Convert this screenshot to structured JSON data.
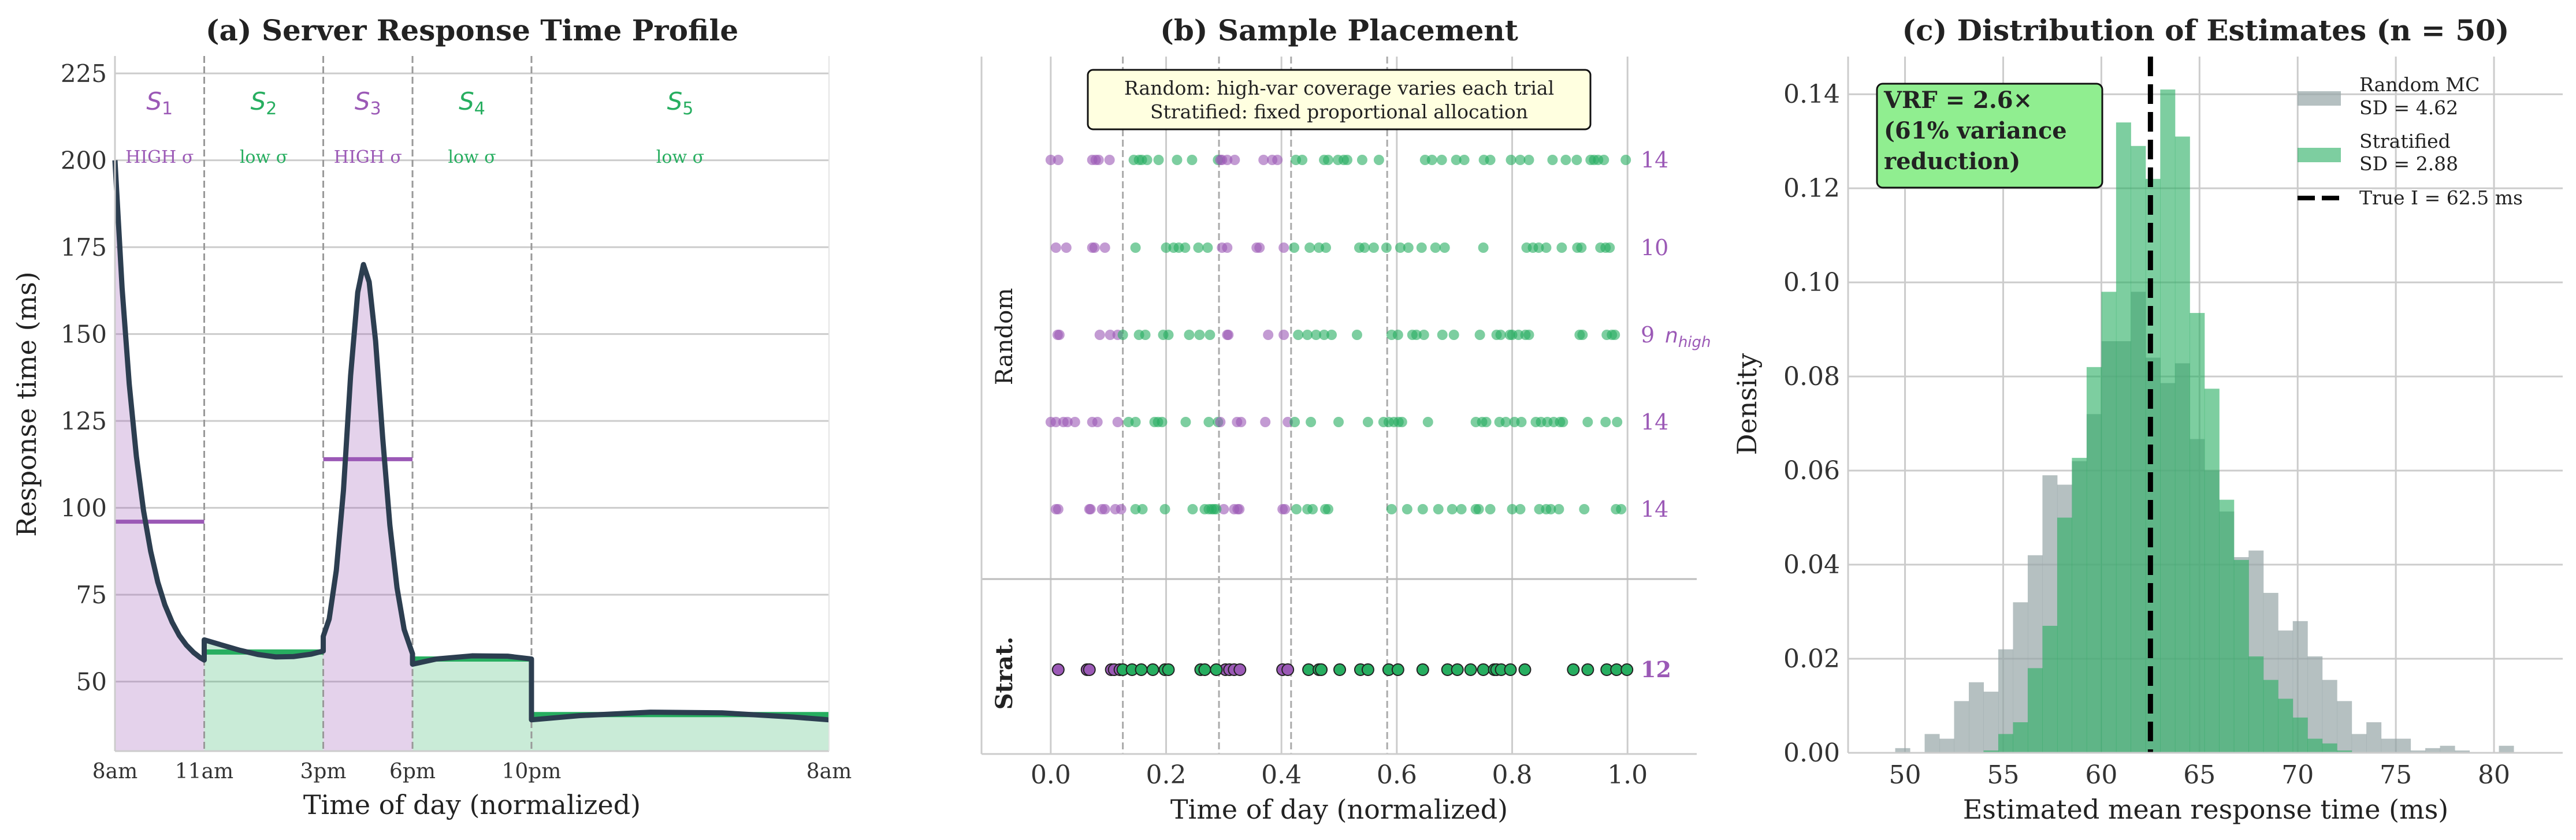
{
  "colors": {
    "high": "#9b59b6",
    "low": "#27ae60",
    "curve": "#2c3e50",
    "random_hist": "#95a5a6",
    "strat_hist": "#27ae60",
    "note_bg": "#ffffe0",
    "vrf_bg": "#90ee90"
  },
  "chart_data": [
    {
      "type": "line",
      "title": "(a) Server Response Time Profile",
      "xlabel": "Time of day (normalized)",
      "ylabel": "Response time (ms)",
      "xlim": [
        0,
        1
      ],
      "ylim": [
        30,
        230
      ],
      "yticks": [
        50,
        75,
        100,
        125,
        150,
        175,
        200,
        225
      ],
      "xticks": [
        0,
        0.125,
        0.2917,
        0.4167,
        0.5833,
        1.0
      ],
      "xticklabels": [
        "8am",
        "11am",
        "3pm",
        "6pm",
        "10pm",
        "8am"
      ],
      "strata": [
        {
          "name": "S",
          "sub": "1",
          "range": [
            0,
            0.125
          ],
          "variance": "HIGH σ",
          "kind": "high",
          "mean": 96
        },
        {
          "name": "S",
          "sub": "2",
          "range": [
            0.125,
            0.2917
          ],
          "variance": "low σ",
          "kind": "low",
          "mean": 58.5
        },
        {
          "name": "S",
          "sub": "3",
          "range": [
            0.2917,
            0.4167
          ],
          "variance": "HIGH σ",
          "kind": "high",
          "mean": 114
        },
        {
          "name": "S",
          "sub": "4",
          "range": [
            0.4167,
            0.5833
          ],
          "variance": "low σ",
          "kind": "low",
          "mean": 56.5
        },
        {
          "name": "S",
          "sub": "5",
          "range": [
            0.5833,
            1.0
          ],
          "variance": "low σ",
          "kind": "low",
          "mean": 40.5
        }
      ],
      "curve": {
        "x": [
          0,
          0.01,
          0.02,
          0.03,
          0.04,
          0.05,
          0.06,
          0.07,
          0.08,
          0.09,
          0.1,
          0.11,
          0.12,
          0.125,
          0.125,
          0.15,
          0.175,
          0.2,
          0.225,
          0.25,
          0.275,
          0.2917,
          0.2917,
          0.3,
          0.31,
          0.32,
          0.33,
          0.34,
          0.348,
          0.356,
          0.365,
          0.375,
          0.385,
          0.395,
          0.405,
          0.4167,
          0.4167,
          0.45,
          0.5,
          0.55,
          0.5833,
          0.5833,
          0.65,
          0.75,
          0.85,
          0.95,
          1.0
        ],
        "y": [
          200,
          163.2,
          135.6,
          114.8,
          99.2,
          87.5,
          78.6,
          72.0,
          67.1,
          63.3,
          60.5,
          58.4,
          56.8,
          56.2,
          62,
          60.5,
          59,
          57.8,
          57.1,
          57.2,
          57.9,
          58.8,
          63,
          68,
          82,
          105,
          138,
          162,
          170,
          165,
          148,
          120,
          95,
          77,
          65,
          58,
          55,
          56.5,
          57.4,
          57.3,
          56.5,
          39,
          40.2,
          41.2,
          41,
          39.8,
          39
        ]
      }
    },
    {
      "type": "scatter",
      "title": "(b) Sample Placement",
      "xlabel": "Time of day (normalized)",
      "xlim": [
        -0.12,
        1.12
      ],
      "xticks": [
        0.0,
        0.2,
        0.4,
        0.6,
        0.8,
        1.0
      ],
      "xticklabels": [
        "0.0",
        "0.2",
        "0.4",
        "0.6",
        "0.8",
        "1.0"
      ],
      "boundaries": [
        0.125,
        0.2917,
        0.4167,
        0.5833
      ],
      "group_labels": {
        "random": "Random",
        "stratified": "Strat."
      },
      "annotation": [
        "Random: high-var coverage varies each trial",
        "Stratified: fixed proportional allocation"
      ],
      "n_high_label": {
        "base": "n",
        "sub": "high"
      },
      "rows": [
        {
          "group": "random",
          "n_high": "14",
          "x": [
            0,
            0.013,
            0.072,
            0.078,
            0.083,
            0.102,
            0.29,
            0.294,
            0.306,
            0.319,
            0.369,
            0.384,
            0.393,
            0.297,
            0.144,
            0.153,
            0.158,
            0.167,
            0.187,
            0.219,
            0.245,
            0.425,
            0.436,
            0.474,
            0.481,
            0.498,
            0.508,
            0.514,
            0.54,
            0.569,
            0.649,
            0.661,
            0.678,
            0.703,
            0.717,
            0.751,
            0.762,
            0.798,
            0.814,
            0.829,
            0.87,
            0.893,
            0.912,
            0.936,
            0.942,
            0.949,
            0.959,
            0.997
          ]
        },
        {
          "group": "random",
          "n_high": "10",
          "x": [
            0.009,
            0.027,
            0.072,
            0.076,
            0.094,
            0.297,
            0.306,
            0.357,
            0.362,
            0.404,
            0.147,
            0.2,
            0.213,
            0.222,
            0.233,
            0.256,
            0.272,
            0.422,
            0.449,
            0.465,
            0.477,
            0.535,
            0.544,
            0.56,
            0.582,
            0.606,
            0.62,
            0.643,
            0.667,
            0.683,
            0.75,
            0.825,
            0.836,
            0.846,
            0.859,
            0.886,
            0.913,
            0.92,
            0.953,
            0.962,
            0.969
          ]
        },
        {
          "group": "random",
          "n_high": "9",
          "show_n_high": true,
          "x": [
            0.012,
            0.015,
            0.085,
            0.103,
            0.116,
            0.306,
            0.308,
            0.377,
            0.404,
            0.125,
            0.153,
            0.164,
            0.195,
            0.204,
            0.24,
            0.258,
            0.276,
            0.429,
            0.445,
            0.46,
            0.474,
            0.487,
            0.531,
            0.591,
            0.602,
            0.627,
            0.634,
            0.647,
            0.679,
            0.699,
            0.744,
            0.773,
            0.78,
            0.796,
            0.8,
            0.811,
            0.823,
            0.829,
            0.917,
            0.922,
            0.964,
            0.973,
            0.978
          ]
        },
        {
          "group": "random",
          "n_high": "14",
          "x": [
            0,
            0.009,
            0.022,
            0.029,
            0.042,
            0.072,
            0.081,
            0.116,
            0.29,
            0.294,
            0.323,
            0.33,
            0.372,
            0.411,
            0.135,
            0.147,
            0.18,
            0.186,
            0.193,
            0.234,
            0.274,
            0.423,
            0.451,
            0.499,
            0.55,
            0.577,
            0.586,
            0.595,
            0.603,
            0.609,
            0.654,
            0.737,
            0.748,
            0.755,
            0.778,
            0.789,
            0.804,
            0.816,
            0.841,
            0.85,
            0.861,
            0.872,
            0.883,
            0.888,
            0.931,
            0.962,
            0.982
          ]
        },
        {
          "group": "random",
          "n_high": "14",
          "x": [
            0.009,
            0.013,
            0.067,
            0.069,
            0.089,
            0.094,
            0.112,
            0.122,
            0.318,
            0.324,
            0.327,
            0.402,
            0.406,
            0.3,
            0.147,
            0.159,
            0.198,
            0.246,
            0.267,
            0.274,
            0.279,
            0.283,
            0.287,
            0.426,
            0.445,
            0.454,
            0.476,
            0.481,
            0.591,
            0.618,
            0.645,
            0.672,
            0.696,
            0.712,
            0.737,
            0.742,
            0.762,
            0.8,
            0.814,
            0.847,
            0.859,
            0.867,
            0.881,
            0.925,
            0.98,
            0.989
          ]
        },
        {
          "group": "stratified",
          "n_high": "12",
          "x": [
            0.013,
            0.063,
            0.067,
            0.105,
            0.11,
            0.12,
            0.303,
            0.31,
            0.318,
            0.328,
            0.402,
            0.411,
            0.125,
            0.141,
            0.157,
            0.177,
            0.198,
            0.204,
            0.26,
            0.267,
            0.287,
            0.447,
            0.465,
            0.469,
            0.501,
            0.537,
            0.55,
            0.586,
            0.602,
            0.645,
            0.688,
            0.705,
            0.728,
            0.75,
            0.769,
            0.773,
            0.781,
            0.797,
            0.822,
            0.906,
            0.931,
            0.964,
            0.981,
            0.999
          ]
        }
      ]
    },
    {
      "type": "bar",
      "subtype": "histogram",
      "title": "(c) Distribution of Estimates (n = 50)",
      "xlabel": "Estimated mean response time (ms)",
      "ylabel": "Density",
      "xlim": [
        47.1,
        83.5
      ],
      "ylim": [
        0,
        0.148
      ],
      "xticks": [
        50,
        55,
        60,
        65,
        70,
        75,
        80
      ],
      "yticks": [
        0.0,
        0.02,
        0.04,
        0.06,
        0.08,
        0.1,
        0.12,
        0.14
      ],
      "bin_start": 49.5,
      "bin_width": 0.75,
      "series": [
        {
          "name": "Random MC",
          "sd_label": "SD = 4.62",
          "values": [
            0.001,
            0,
            0.004,
            0.003,
            0.011,
            0.015,
            0.013,
            0.022,
            0.032,
            0.042,
            0.059,
            0.057,
            0.062,
            0.072,
            0.0875,
            0.0875,
            0.098,
            0.084,
            0.0786,
            0.0828,
            0.0667,
            0.06,
            0.0513,
            0.0416,
            0.043,
            0.034,
            0.026,
            0.028,
            0.0205,
            0.0155,
            0.011,
            0.004,
            0.0065,
            0.003,
            0.003,
            0.0005,
            0.001,
            0.0015,
            0.0005,
            0,
            0,
            0.0015
          ]
        },
        {
          "name": "Stratified",
          "sd_label": "SD = 2.88",
          "values": [
            0,
            0,
            0,
            0,
            0,
            0,
            0.0005,
            0.004,
            0.0065,
            0.018,
            0.027,
            0.05,
            0.0627,
            0.082,
            0.098,
            0.134,
            0.129,
            0.122,
            0.141,
            0.131,
            0.0935,
            0.0774,
            0.0538,
            0.041,
            0.0205,
            0.0155,
            0.0115,
            0.0075,
            0.003,
            0.002,
            0.0005,
            0,
            0,
            0,
            0,
            0,
            0,
            0,
            0,
            0,
            0,
            0
          ]
        }
      ],
      "true_value": 62.5,
      "true_label": "True I = 62.5 ms",
      "vrf_box": [
        "VRF = 2.6×",
        "(61% variance",
        "reduction)"
      ],
      "legend_position": "top-right"
    }
  ]
}
